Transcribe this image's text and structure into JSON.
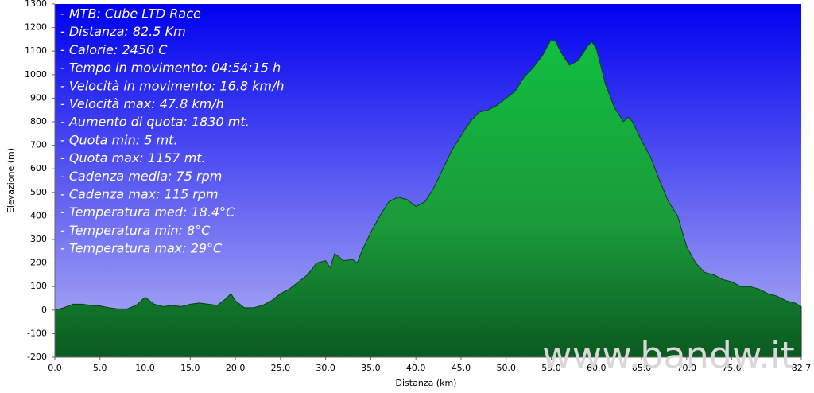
{
  "chart_data": {
    "type": "area",
    "y_label": "Elevazione (m)",
    "x_label": "Distanza  (km)",
    "annotations": [
      "- MTB: Cube LTD Race",
      "- Distanza: 82.5 Km",
      "- Calorie: 2450 C",
      "- Tempo in movimento: 04:54:15 h",
      "- Velocità in movimento: 16.8 km/h",
      "- Velocità max: 47.8 km/h",
      "- Aumento di quota: 1830 mt.",
      "- Quota min: 5 mt.",
      "- Quota max: 1157 mt.",
      "- Cadenza media: 75 rpm",
      "- Cadenza max: 115 rpm",
      "- Temperatura med: 18.4°C",
      "- Temperatura min: 8°C",
      "- Temperatura max: 29°C"
    ],
    "watermark": "www.bandw.it",
    "color": "#1f9e3c",
    "x": [
      0,
      1,
      2,
      3,
      4,
      5,
      6,
      7,
      8,
      9,
      10,
      11,
      12,
      13,
      14,
      15,
      16,
      17,
      18,
      19,
      19.5,
      20,
      21,
      22,
      23,
      24,
      25,
      26,
      27,
      28,
      29,
      30,
      30.5,
      31,
      32,
      33,
      33.5,
      34,
      35,
      36,
      37,
      38,
      39,
      40,
      41,
      42,
      43,
      44,
      45,
      46,
      47,
      48,
      49,
      50,
      51,
      52,
      53,
      54,
      55,
      55.5,
      56,
      57,
      58,
      59,
      59.5,
      60,
      61,
      62,
      63,
      63.5,
      64,
      65,
      66,
      67,
      68,
      69,
      70,
      71,
      72,
      73,
      74,
      75,
      76,
      77,
      78,
      79,
      80,
      81,
      82,
      82.7
    ],
    "values": [
      0,
      10,
      25,
      25,
      20,
      18,
      10,
      5,
      5,
      20,
      55,
      25,
      15,
      20,
      15,
      25,
      30,
      25,
      20,
      50,
      70,
      40,
      10,
      10,
      20,
      40,
      70,
      90,
      120,
      150,
      200,
      210,
      180,
      240,
      210,
      215,
      200,
      250,
      330,
      400,
      460,
      480,
      470,
      440,
      460,
      520,
      600,
      680,
      740,
      800,
      840,
      850,
      870,
      900,
      930,
      990,
      1030,
      1080,
      1150,
      1140,
      1100,
      1040,
      1060,
      1120,
      1140,
      1110,
      960,
      860,
      800,
      820,
      800,
      720,
      650,
      550,
      460,
      400,
      270,
      200,
      160,
      150,
      130,
      120,
      100,
      100,
      90,
      70,
      60,
      40,
      30,
      15
    ],
    "xlim": [
      0,
      82.7
    ],
    "ylim": [
      -200,
      1300
    ],
    "xticks": [
      {
        "value": 0,
        "label": "0.0"
      },
      {
        "value": 5,
        "label": "5.0"
      },
      {
        "value": 10,
        "label": "10.0"
      },
      {
        "value": 15,
        "label": "15.0"
      },
      {
        "value": 20,
        "label": "20.0"
      },
      {
        "value": 25,
        "label": "25.0"
      },
      {
        "value": 30,
        "label": "30.0"
      },
      {
        "value": 35,
        "label": "35.0"
      },
      {
        "value": 40,
        "label": "40.0"
      },
      {
        "value": 45,
        "label": "45.0"
      },
      {
        "value": 50,
        "label": "50.0"
      },
      {
        "value": 55,
        "label": "55.0"
      },
      {
        "value": 60,
        "label": "60.0"
      },
      {
        "value": 65,
        "label": "65.0"
      },
      {
        "value": 70,
        "label": "70.0"
      },
      {
        "value": 75,
        "label": "75.0"
      },
      82.7
    ],
    "yticks": [
      -200,
      -100,
      0,
      100,
      200,
      300,
      400,
      500,
      600,
      700,
      800,
      900,
      1000,
      1100,
      1200,
      1300
    ]
  }
}
